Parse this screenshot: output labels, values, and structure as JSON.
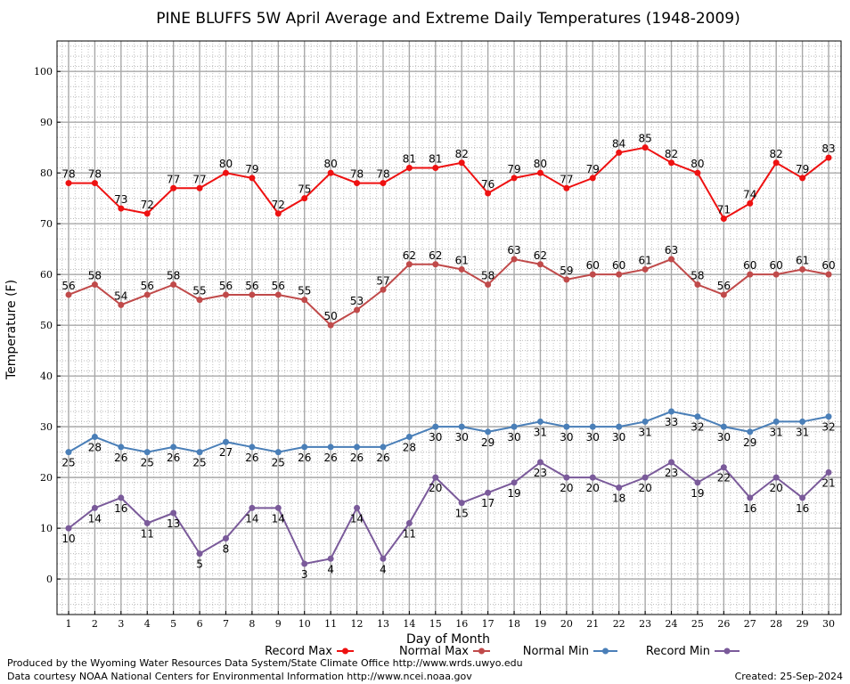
{
  "chart_data": {
    "type": "line",
    "title": "PINE BLUFFS 5W April Average and Extreme Daily Temperatures (1948-2009)",
    "xlabel": "Day of Month",
    "ylabel": "Temperature (F)",
    "xlim": [
      1,
      30
    ],
    "ylim": [
      -7,
      106
    ],
    "yticks": [
      0,
      10,
      20,
      30,
      40,
      50,
      60,
      70,
      80,
      90,
      100
    ],
    "x": [
      1,
      2,
      3,
      4,
      5,
      6,
      7,
      8,
      9,
      10,
      11,
      12,
      13,
      14,
      15,
      16,
      17,
      18,
      19,
      20,
      21,
      22,
      23,
      24,
      25,
      26,
      27,
      28,
      29,
      30
    ],
    "grid": true,
    "legend_position": "bottom",
    "series": [
      {
        "name": "Record Max",
        "color": "#ee1111",
        "label_position": "above",
        "values": [
          78,
          78,
          73,
          72,
          77,
          77,
          80,
          79,
          72,
          75,
          80,
          78,
          78,
          81,
          81,
          82,
          76,
          79,
          80,
          77,
          79,
          84,
          85,
          82,
          80,
          71,
          74,
          82,
          79,
          83
        ]
      },
      {
        "name": "Normal Max",
        "color": "#c04a4a",
        "label_position": "above",
        "values": [
          56,
          58,
          54,
          56,
          58,
          55,
          56,
          56,
          56,
          55,
          50,
          53,
          57,
          62,
          62,
          61,
          58,
          63,
          62,
          59,
          60,
          60,
          61,
          63,
          58,
          56,
          60,
          60,
          61,
          60
        ]
      },
      {
        "name": "Normal Min",
        "color": "#4a7fb8",
        "label_position": "below",
        "values": [
          25,
          28,
          26,
          25,
          26,
          25,
          27,
          26,
          25,
          26,
          26,
          26,
          26,
          28,
          30,
          30,
          29,
          30,
          31,
          30,
          30,
          30,
          31,
          33,
          32,
          30,
          29,
          31,
          31,
          32
        ]
      },
      {
        "name": "Record Min",
        "color": "#7a5a9a",
        "label_position": "below",
        "values": [
          10,
          14,
          16,
          11,
          13,
          5,
          8,
          14,
          14,
          3,
          4,
          14,
          4,
          11,
          20,
          15,
          17,
          19,
          23,
          20,
          20,
          18,
          20,
          23,
          19,
          22,
          16,
          20,
          16,
          21
        ]
      }
    ]
  },
  "footer": {
    "produced_by": "Produced by the Wyoming Water Resources Data System/State Climate Office http://www.wrds.uwyo.edu",
    "data_courtesy": "Data courtesy NOAA National Centers for Environmental Information http://www.ncei.noaa.gov",
    "created": "Created:  25-Sep-2024"
  }
}
